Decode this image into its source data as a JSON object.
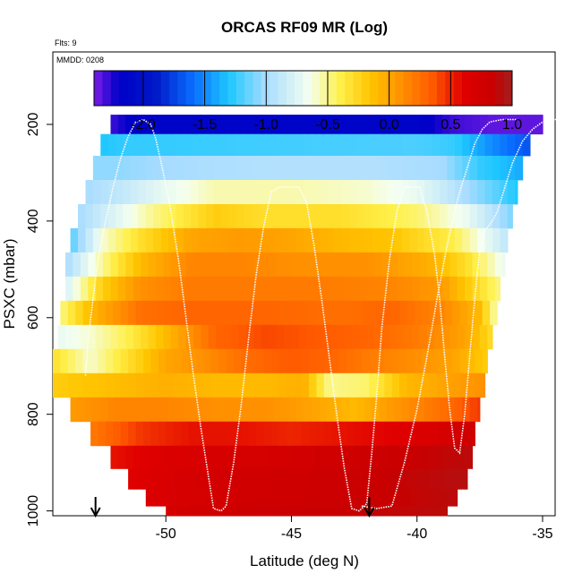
{
  "chart_data": {
    "type": "heatmap",
    "title": "ORCAS RF09 MR (Log)",
    "flights_label": "Flts: 9",
    "date_label": "MMDD: 0208",
    "xlabel": "Latitude (deg N)",
    "ylabel": "PSXC (mbar)",
    "xlim": [
      -54.5,
      -34.5
    ],
    "ylim": [
      1010,
      50
    ],
    "x_ticks": [
      -50,
      -45,
      -40,
      -35
    ],
    "x_tick_labels": [
      "-50",
      "-45",
      "-40",
      "-35"
    ],
    "y_ticks": [
      200,
      400,
      600,
      800,
      1000
    ],
    "y_tick_labels": [
      "200",
      "400",
      "600",
      "800",
      "1000"
    ],
    "colorbar": {
      "min": -2.4,
      "max": 1.0,
      "ticks": [
        -2.0,
        -1.5,
        -1.0,
        -0.5,
        0.0,
        0.5,
        1.0
      ],
      "tick_labels": [
        "-2.0",
        "-1.5",
        "-1.0",
        "-0.5",
        "0.0",
        "0.5",
        "1.0"
      ],
      "stops": [
        {
          "v": -2.4,
          "color": "#7d1de6"
        },
        {
          "v": -2.2,
          "color": "#0000c8"
        },
        {
          "v": -1.9,
          "color": "#0018c8"
        },
        {
          "v": -1.6,
          "color": "#0a6cff"
        },
        {
          "v": -1.3,
          "color": "#1ec8ff"
        },
        {
          "v": -1.0,
          "color": "#a8dcff"
        },
        {
          "v": -0.65,
          "color": "#f4fff0"
        },
        {
          "v": -0.4,
          "color": "#fff04a"
        },
        {
          "v": -0.15,
          "color": "#ffc400"
        },
        {
          "v": 0.1,
          "color": "#ff9000"
        },
        {
          "v": 0.35,
          "color": "#ff5a00"
        },
        {
          "v": 0.6,
          "color": "#e00000"
        },
        {
          "v": 0.85,
          "color": "#c80000"
        },
        {
          "v": 1.0,
          "color": "#a02020"
        }
      ]
    },
    "rows": [
      {
        "p": 200,
        "x0": -52.2,
        "x1": -35.0,
        "v": [
          [
            -52.2,
            -2.3
          ],
          [
            -51.5,
            -2.2
          ],
          [
            -50,
            -2.15
          ],
          [
            -45,
            -2.15
          ],
          [
            -40,
            -2.15
          ],
          [
            -38.5,
            -2.3
          ],
          [
            -37,
            -2.35
          ],
          [
            -35.0,
            -2.35
          ]
        ]
      },
      {
        "p": 240,
        "x0": -52.6,
        "x1": -35.5,
        "v": [
          [
            -52.6,
            -1.3
          ],
          [
            -51.5,
            -1.25
          ],
          [
            -50,
            -1.25
          ],
          [
            -45,
            -1.22
          ],
          [
            -40,
            -1.2
          ],
          [
            -38.5,
            -1.25
          ],
          [
            -37,
            -1.5
          ],
          [
            -35.5,
            -1.7
          ]
        ]
      },
      {
        "p": 290,
        "x0": -52.9,
        "x1": -35.8,
        "v": [
          [
            -52.9,
            -1.05
          ],
          [
            -52,
            -1.05
          ],
          [
            -50,
            -1.0
          ],
          [
            -46,
            -0.95
          ],
          [
            -42,
            -0.95
          ],
          [
            -39,
            -1.0
          ],
          [
            -37.5,
            -1.25
          ],
          [
            -35.8,
            -1.4
          ]
        ]
      },
      {
        "p": 340,
        "x0": -53.2,
        "x1": -36.0,
        "v": [
          [
            -53.2,
            -1.0
          ],
          [
            -52,
            -0.9
          ],
          [
            -50,
            -0.7
          ],
          [
            -48,
            -0.55
          ],
          [
            -45,
            -0.55
          ],
          [
            -42,
            -0.6
          ],
          [
            -40,
            -0.7
          ],
          [
            -38,
            -1.0
          ],
          [
            -36,
            -1.3
          ]
        ]
      },
      {
        "p": 390,
        "x0": -53.5,
        "x1": -36.2,
        "v": [
          [
            -53.5,
            -1.0
          ],
          [
            -52,
            -0.75
          ],
          [
            -50.5,
            -0.5
          ],
          [
            -48,
            -0.2
          ],
          [
            -46,
            -0.3
          ],
          [
            -43,
            -0.3
          ],
          [
            -40,
            -0.45
          ],
          [
            -38,
            -0.7
          ],
          [
            -36.2,
            -1.1
          ]
        ]
      },
      {
        "p": 440,
        "x0": -53.8,
        "x1": -36.4,
        "v": [
          [
            -53.8,
            -1.2
          ],
          [
            -52.5,
            -0.6
          ],
          [
            -51,
            -0.3
          ],
          [
            -49,
            0.0
          ],
          [
            -47,
            0.05
          ],
          [
            -45,
            0.0
          ],
          [
            -43,
            -0.1
          ],
          [
            -41,
            -0.15
          ],
          [
            -38.5,
            -0.4
          ],
          [
            -36.4,
            -0.9
          ]
        ]
      },
      {
        "p": 490,
        "x0": -54.0,
        "x1": -36.5,
        "v": [
          [
            -54.0,
            -1.0
          ],
          [
            -52.5,
            -0.5
          ],
          [
            -51,
            -0.1
          ],
          [
            -49,
            0.15
          ],
          [
            -47,
            0.15
          ],
          [
            -45,
            0.1
          ],
          [
            -42,
            0.1
          ],
          [
            -39.5,
            -0.05
          ],
          [
            -38,
            -0.3
          ],
          [
            -36.5,
            -0.7
          ]
        ]
      },
      {
        "p": 540,
        "x0": -54.0,
        "x1": -36.7,
        "v": [
          [
            -54.0,
            -0.8
          ],
          [
            -52.5,
            -0.2
          ],
          [
            -51,
            0.1
          ],
          [
            -49,
            0.2
          ],
          [
            -47,
            0.2
          ],
          [
            -44,
            0.2
          ],
          [
            -41,
            0.15
          ],
          [
            -39,
            0.05
          ],
          [
            -37.5,
            -0.3
          ],
          [
            -36.7,
            -0.5
          ]
        ]
      },
      {
        "p": 590,
        "x0": -54.2,
        "x1": -36.8,
        "v": [
          [
            -54.2,
            -0.5
          ],
          [
            -53,
            -0.1
          ],
          [
            -51,
            0.25
          ],
          [
            -49,
            0.3
          ],
          [
            -46,
            0.3
          ],
          [
            -43,
            0.25
          ],
          [
            -41,
            0.3
          ],
          [
            -39,
            0.15
          ],
          [
            -37.5,
            -0.1
          ],
          [
            -36.8,
            -0.6
          ]
        ]
      },
      {
        "p": 640,
        "x0": -54.3,
        "x1": -37.0,
        "v": [
          [
            -54.3,
            -0.7
          ],
          [
            -53,
            -0.6
          ],
          [
            -51.5,
            -0.4
          ],
          [
            -50,
            -0.1
          ],
          [
            -48,
            0.3
          ],
          [
            -46,
            0.4
          ],
          [
            -44,
            0.35
          ],
          [
            -42,
            0.3
          ],
          [
            -40,
            0.2
          ],
          [
            -38,
            0.0
          ],
          [
            -37,
            -0.3
          ]
        ]
      },
      {
        "p": 690,
        "x0": -54.5,
        "x1": -37.2,
        "v": [
          [
            -54.5,
            -0.3
          ],
          [
            -53,
            -0.6
          ],
          [
            -51.5,
            -0.3
          ],
          [
            -50,
            0.0
          ],
          [
            -48.5,
            0.1
          ],
          [
            -47,
            0.25
          ],
          [
            -45,
            0.35
          ],
          [
            -43.5,
            0.3
          ],
          [
            -42,
            0.2
          ],
          [
            -40,
            0.1
          ],
          [
            -38.5,
            0.0
          ],
          [
            -37.2,
            -0.2
          ]
        ]
      },
      {
        "p": 740,
        "x0": -54.5,
        "x1": -37.3,
        "v": [
          [
            -54.5,
            -0.2
          ],
          [
            -53,
            -0.15
          ],
          [
            -51.5,
            -0.1
          ],
          [
            -50,
            -0.05
          ],
          [
            -48,
            -0.1
          ],
          [
            -46,
            -0.1
          ],
          [
            -44.5,
            -0.05
          ],
          [
            -43.5,
            -0.5
          ],
          [
            -42,
            -0.45
          ],
          [
            -40.5,
            -0.1
          ],
          [
            -39,
            0.0
          ],
          [
            -37.3,
            0.1
          ]
        ]
      },
      {
        "p": 790,
        "x0": -53.8,
        "x1": -37.5,
        "v": [
          [
            -53.8,
            0.05
          ],
          [
            -52,
            0.15
          ],
          [
            -50,
            0.15
          ],
          [
            -48,
            0.1
          ],
          [
            -46,
            0.1
          ],
          [
            -44,
            0.0
          ],
          [
            -42.5,
            -0.1
          ],
          [
            -41.5,
            0.0
          ],
          [
            -40,
            0.15
          ],
          [
            -38.5,
            0.3
          ],
          [
            -37.5,
            0.45
          ]
        ]
      },
      {
        "p": 840,
        "x0": -53.0,
        "x1": -37.7,
        "v": [
          [
            -53.0,
            0.2
          ],
          [
            -51,
            0.45
          ],
          [
            -49,
            0.55
          ],
          [
            -47,
            0.55
          ],
          [
            -45,
            0.5
          ],
          [
            -43,
            0.55
          ],
          [
            -41,
            0.6
          ],
          [
            -39,
            0.7
          ],
          [
            -37.7,
            0.8
          ]
        ]
      },
      {
        "p": 890,
        "x0": -52.2,
        "x1": -37.8,
        "v": [
          [
            -52.2,
            0.55
          ],
          [
            -50,
            0.65
          ],
          [
            -48,
            0.7
          ],
          [
            -46,
            0.72
          ],
          [
            -44,
            0.75
          ],
          [
            -42,
            0.8
          ],
          [
            -40,
            0.85
          ],
          [
            -37.8,
            0.9
          ]
        ]
      },
      {
        "p": 935,
        "x0": -51.5,
        "x1": -38.0,
        "v": [
          [
            -51.5,
            0.6
          ],
          [
            -49.5,
            0.7
          ],
          [
            -47.5,
            0.75
          ],
          [
            -45,
            0.78
          ],
          [
            -42.5,
            0.82
          ],
          [
            -40,
            0.88
          ],
          [
            -38.0,
            0.92
          ]
        ]
      },
      {
        "p": 975,
        "x0": -50.8,
        "x1": -38.4,
        "v": [
          [
            -50.8,
            0.65
          ],
          [
            -48.5,
            0.72
          ],
          [
            -46,
            0.78
          ],
          [
            -43.5,
            0.8
          ],
          [
            -41,
            0.85
          ],
          [
            -38.4,
            0.9
          ]
        ]
      },
      {
        "p": 1005,
        "x0": -50.0,
        "x1": -38.8,
        "v": [
          [
            -50.0,
            0.72
          ],
          [
            -48,
            0.78
          ],
          [
            -45.5,
            0.82
          ],
          [
            -43,
            0.85
          ],
          [
            -40.5,
            0.88
          ],
          [
            -38.8,
            0.9
          ]
        ]
      }
    ],
    "track": [
      [
        -53.2,
        720
      ],
      [
        -53.1,
        650
      ],
      [
        -52.9,
        560
      ],
      [
        -52.7,
        480
      ],
      [
        -52.4,
        400
      ],
      [
        -52.1,
        330
      ],
      [
        -51.8,
        270
      ],
      [
        -51.5,
        225
      ],
      [
        -51.2,
        195
      ],
      [
        -50.9,
        190
      ],
      [
        -50.6,
        200
      ],
      [
        -50.4,
        230
      ],
      [
        -50.1,
        300
      ],
      [
        -49.8,
        380
      ],
      [
        -49.5,
        480
      ],
      [
        -49.2,
        600
      ],
      [
        -48.9,
        720
      ],
      [
        -48.6,
        830
      ],
      [
        -48.3,
        930
      ],
      [
        -48.1,
        995
      ],
      [
        -47.8,
        1000
      ],
      [
        -47.6,
        990
      ],
      [
        -47.3,
        900
      ],
      [
        -47.0,
        780
      ],
      [
        -46.7,
        640
      ],
      [
        -46.4,
        510
      ],
      [
        -46.1,
        410
      ],
      [
        -45.8,
        340
      ],
      [
        -45.5,
        330
      ],
      [
        -44.7,
        330
      ],
      [
        -44.4,
        360
      ],
      [
        -44.1,
        450
      ],
      [
        -43.8,
        560
      ],
      [
        -43.5,
        680
      ],
      [
        -43.2,
        800
      ],
      [
        -42.9,
        910
      ],
      [
        -42.6,
        995
      ],
      [
        -42.3,
        1000
      ],
      [
        -42.0,
        985
      ],
      [
        -41.8,
        880
      ],
      [
        -41.6,
        760
      ],
      [
        -41.4,
        620
      ],
      [
        -41.1,
        480
      ],
      [
        -40.8,
        380
      ],
      [
        -40.5,
        330
      ],
      [
        -39.9,
        330
      ],
      [
        -39.6,
        380
      ],
      [
        -39.3,
        470
      ],
      [
        -39.1,
        560
      ],
      [
        -38.9,
        680
      ],
      [
        -38.7,
        790
      ],
      [
        -38.5,
        870
      ],
      [
        -38.3,
        880
      ],
      [
        -38.1,
        800
      ],
      [
        -37.9,
        680
      ],
      [
        -37.7,
        560
      ],
      [
        -37.5,
        460
      ],
      [
        -37.3,
        420
      ],
      [
        -37.0,
        400
      ],
      [
        -36.8,
        380
      ],
      [
        -36.5,
        330
      ],
      [
        -36.2,
        280
      ],
      [
        -35.8,
        235
      ],
      [
        -35.4,
        210
      ],
      [
        -35.0,
        195
      ],
      [
        -34.7,
        190
      ],
      [
        -34.4,
        190
      ]
    ],
    "track_tail": [
      [
        -42.2,
        990
      ],
      [
        -41.6,
        995
      ],
      [
        -41.0,
        990
      ],
      [
        -40.5,
        900
      ],
      [
        -40.0,
        790
      ],
      [
        -39.6,
        680
      ],
      [
        -39.2,
        560
      ],
      [
        -38.8,
        450
      ],
      [
        -38.5,
        380
      ],
      [
        -38.3,
        340
      ],
      [
        -38.0,
        290
      ],
      [
        -37.7,
        240
      ],
      [
        -37.4,
        210
      ],
      [
        -37.1,
        195
      ],
      [
        -36.6,
        190
      ],
      [
        -36.0,
        190
      ]
    ],
    "arrows_x": [
      -52.8,
      -41.9
    ]
  }
}
